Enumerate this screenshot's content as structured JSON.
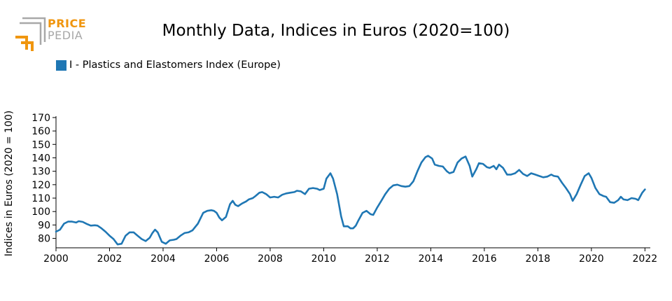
{
  "logo": {
    "line1": "PRICE",
    "line2": "PEDIA",
    "colors": {
      "orange": "#f0960f",
      "grey": "#a8a8a8"
    }
  },
  "colors": {
    "series": "#1f77b4"
  },
  "chart_data": {
    "type": "line",
    "title": "Monthly Data, Indices in Euros (2020=100)",
    "ylabel": "Indices in Euros (2020 = 100)",
    "xlabel": "",
    "xlim": [
      2000.0,
      2022.2
    ],
    "ylim": [
      73,
      171
    ],
    "x_ticks": [
      "2000",
      "2002",
      "2004",
      "2006",
      "2008",
      "2010",
      "2012",
      "2014",
      "2016",
      "2018",
      "2020",
      "2022"
    ],
    "y_ticks": [
      "80",
      "90",
      "100",
      "110",
      "120",
      "130",
      "140",
      "150",
      "160",
      "170"
    ],
    "grid": false,
    "legend": "top-left",
    "series": [
      {
        "name": "I - Plastics and Elastomers Index (Europe)",
        "points": [
          [
            2000.0,
            85
          ],
          [
            2000.15,
            86.5
          ],
          [
            2000.3,
            91
          ],
          [
            2000.45,
            92.5
          ],
          [
            2000.6,
            92.5
          ],
          [
            2000.75,
            91.8
          ],
          [
            2000.85,
            92.8
          ],
          [
            2001.0,
            92.3
          ],
          [
            2001.15,
            90.8
          ],
          [
            2001.3,
            89.5
          ],
          [
            2001.45,
            89.8
          ],
          [
            2001.55,
            89.5
          ],
          [
            2001.7,
            87.5
          ],
          [
            2001.85,
            85
          ],
          [
            2002.0,
            82
          ],
          [
            2002.15,
            79.5
          ],
          [
            2002.3,
            75.5
          ],
          [
            2002.45,
            76
          ],
          [
            2002.6,
            82
          ],
          [
            2002.75,
            84.5
          ],
          [
            2002.9,
            84.5
          ],
          [
            2003.05,
            82
          ],
          [
            2003.2,
            79.5
          ],
          [
            2003.35,
            78
          ],
          [
            2003.5,
            80.5
          ],
          [
            2003.6,
            84
          ],
          [
            2003.7,
            86.5
          ],
          [
            2003.8,
            84.5
          ],
          [
            2003.95,
            77.5
          ],
          [
            2004.1,
            76
          ],
          [
            2004.25,
            78.5
          ],
          [
            2004.4,
            79
          ],
          [
            2004.5,
            79.5
          ],
          [
            2004.65,
            82
          ],
          [
            2004.8,
            84
          ],
          [
            2004.95,
            84.5
          ],
          [
            2005.1,
            86
          ],
          [
            2005.3,
            91
          ],
          [
            2005.5,
            99
          ],
          [
            2005.65,
            100.5
          ],
          [
            2005.8,
            101
          ],
          [
            2005.9,
            100.5
          ],
          [
            2006.0,
            99
          ],
          [
            2006.1,
            95.5
          ],
          [
            2006.2,
            93.5
          ],
          [
            2006.35,
            96
          ],
          [
            2006.5,
            105.5
          ],
          [
            2006.6,
            108
          ],
          [
            2006.7,
            105
          ],
          [
            2006.8,
            104
          ],
          [
            2006.95,
            106
          ],
          [
            2007.1,
            107.5
          ],
          [
            2007.2,
            109
          ],
          [
            2007.35,
            110
          ],
          [
            2007.45,
            111.5
          ],
          [
            2007.6,
            114
          ],
          [
            2007.7,
            114.5
          ],
          [
            2007.85,
            113
          ],
          [
            2008.0,
            110.5
          ],
          [
            2008.15,
            111
          ],
          [
            2008.3,
            110.5
          ],
          [
            2008.45,
            112.5
          ],
          [
            2008.6,
            113.5
          ],
          [
            2008.75,
            114
          ],
          [
            2008.9,
            114.5
          ],
          [
            2009.0,
            115.5
          ],
          [
            2009.15,
            115
          ],
          [
            2009.3,
            113
          ],
          [
            2009.45,
            117
          ],
          [
            2009.6,
            117.5
          ],
          [
            2009.75,
            117
          ],
          [
            2009.85,
            116
          ],
          [
            2010.0,
            117
          ],
          [
            2010.1,
            124.5
          ],
          [
            2010.25,
            128.5
          ],
          [
            2010.35,
            124.5
          ],
          [
            2010.5,
            113
          ],
          [
            2010.65,
            96.5
          ],
          [
            2010.75,
            89
          ],
          [
            2010.9,
            89
          ],
          [
            2011.0,
            87.5
          ],
          [
            2011.1,
            87.5
          ],
          [
            2011.2,
            89.5
          ],
          [
            2011.3,
            93.5
          ],
          [
            2011.45,
            99
          ],
          [
            2011.6,
            100.5
          ],
          [
            2011.75,
            98
          ],
          [
            2011.85,
            97.5
          ],
          [
            2012.0,
            103
          ],
          [
            2012.15,
            108
          ],
          [
            2012.3,
            113
          ],
          [
            2012.45,
            117
          ],
          [
            2012.6,
            119.5
          ],
          [
            2012.75,
            120
          ],
          [
            2012.9,
            119
          ],
          [
            2013.05,
            118.5
          ],
          [
            2013.2,
            119
          ],
          [
            2013.35,
            122.5
          ],
          [
            2013.5,
            130
          ],
          [
            2013.65,
            136.5
          ],
          [
            2013.8,
            140.5
          ],
          [
            2013.9,
            141.5
          ],
          [
            2014.05,
            139.5
          ],
          [
            2014.15,
            135
          ],
          [
            2014.3,
            134
          ],
          [
            2014.45,
            133.5
          ],
          [
            2014.6,
            130
          ],
          [
            2014.7,
            128.5
          ],
          [
            2014.85,
            129.5
          ],
          [
            2015.0,
            136.5
          ],
          [
            2015.15,
            139.5
          ],
          [
            2015.3,
            141
          ],
          [
            2015.45,
            134
          ],
          [
            2015.55,
            126
          ],
          [
            2015.7,
            131.5
          ],
          [
            2015.8,
            136
          ],
          [
            2015.95,
            135.5
          ],
          [
            2016.1,
            133
          ],
          [
            2016.2,
            132.5
          ],
          [
            2016.35,
            134
          ],
          [
            2016.45,
            131.5
          ],
          [
            2016.55,
            135
          ],
          [
            2016.7,
            132.5
          ],
          [
            2016.85,
            127.5
          ],
          [
            2017.0,
            127.5
          ],
          [
            2017.15,
            128.5
          ],
          [
            2017.3,
            131
          ],
          [
            2017.45,
            128
          ],
          [
            2017.6,
            126.5
          ],
          [
            2017.75,
            128.5
          ],
          [
            2017.9,
            127.5
          ],
          [
            2018.05,
            126.5
          ],
          [
            2018.2,
            125.5
          ],
          [
            2018.35,
            126
          ],
          [
            2018.5,
            127.5
          ],
          [
            2018.6,
            126.5
          ],
          [
            2018.75,
            126
          ],
          [
            2018.9,
            121.5
          ],
          [
            2019.05,
            117.5
          ],
          [
            2019.2,
            113
          ],
          [
            2019.3,
            108
          ],
          [
            2019.45,
            113
          ],
          [
            2019.6,
            120
          ],
          [
            2019.75,
            126.5
          ],
          [
            2019.9,
            128.5
          ],
          [
            2020.0,
            125
          ],
          [
            2020.15,
            117.5
          ],
          [
            2020.3,
            113
          ],
          [
            2020.45,
            111.5
          ],
          [
            2020.55,
            111
          ],
          [
            2020.7,
            107
          ],
          [
            2020.85,
            106.5
          ],
          [
            2021.0,
            108.5
          ],
          [
            2021.1,
            111
          ],
          [
            2021.2,
            109
          ],
          [
            2021.35,
            108.5
          ],
          [
            2021.5,
            110
          ],
          [
            2021.65,
            109.5
          ],
          [
            2021.75,
            108.5
          ],
          [
            2021.9,
            114
          ],
          [
            2022.0,
            116.5
          ]
        ]
      }
    ]
  }
}
